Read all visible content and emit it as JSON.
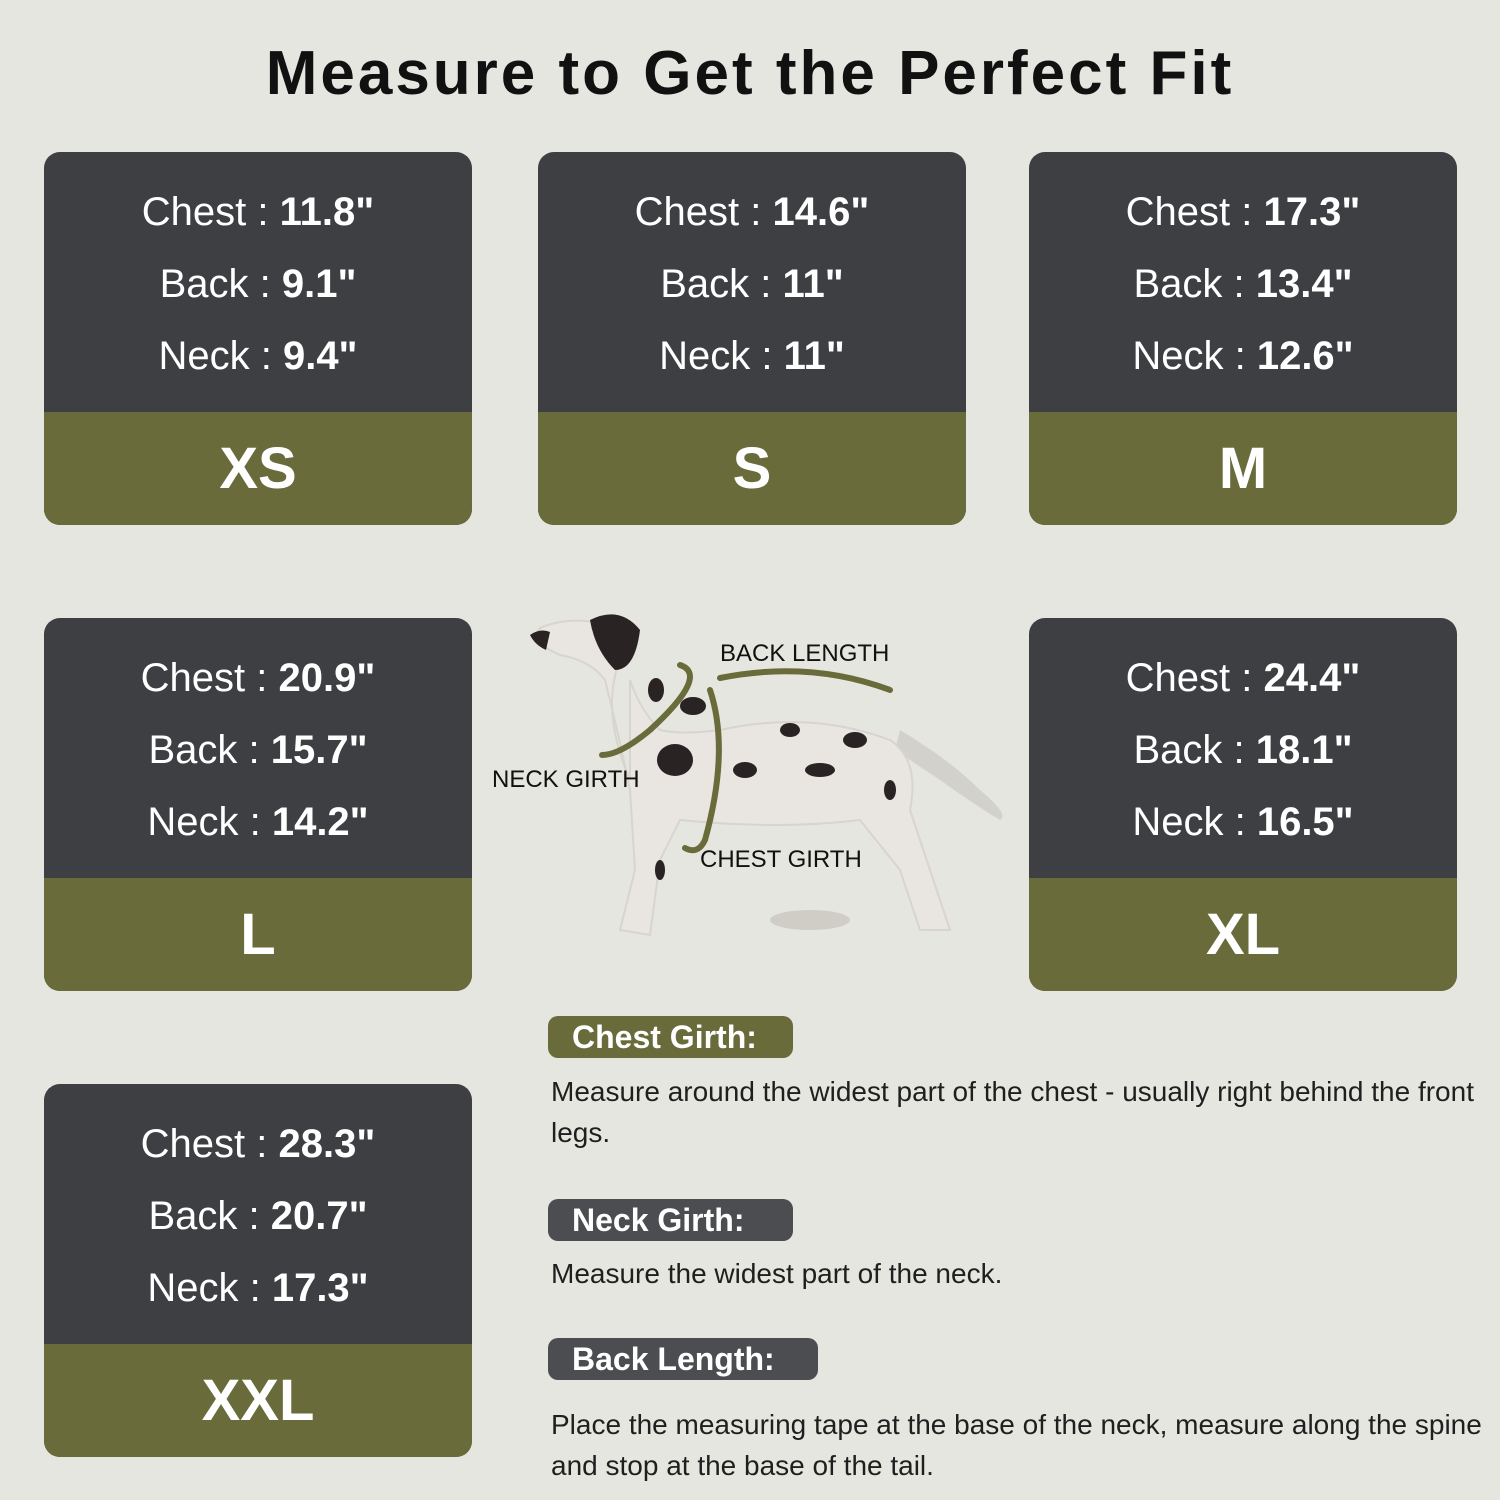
{
  "title": "Measure to Get the Perfect Fit",
  "sizes": [
    {
      "size": "XS",
      "chest_label": "Chest : ",
      "chest": "11.8\"",
      "back_label": "Back : ",
      "back": "9.1\"",
      "neck_label": "Neck : ",
      "neck": "9.4\""
    },
    {
      "size": "S",
      "chest_label": "Chest : ",
      "chest": "14.6\"",
      "back_label": "Back : ",
      "back": "11\"",
      "neck_label": "Neck : ",
      "neck": "11\""
    },
    {
      "size": "M",
      "chest_label": "Chest : ",
      "chest": "17.3\"",
      "back_label": "Back : ",
      "back": "13.4\"",
      "neck_label": "Neck : ",
      "neck": "12.6\""
    },
    {
      "size": "L",
      "chest_label": "Chest : ",
      "chest": "20.9\"",
      "back_label": "Back : ",
      "back": "15.7\"",
      "neck_label": "Neck : ",
      "neck": "14.2\""
    },
    {
      "size": "XL",
      "chest_label": "Chest : ",
      "chest": "24.4\"",
      "back_label": "Back : ",
      "back": "18.1\"",
      "neck_label": "Neck : ",
      "neck": "16.5\""
    },
    {
      "size": "XXL",
      "chest_label": "Chest : ",
      "chest": "28.3\"",
      "back_label": "Back : ",
      "back": "20.7\"",
      "neck_label": "Neck : ",
      "neck": "17.3\""
    }
  ],
  "diagram": {
    "back_length": "BACK LENGTH",
    "neck_girth": "NECK GIRTH",
    "chest_girth": "CHEST GIRTH"
  },
  "guide": [
    {
      "heading": "Chest Girth:",
      "text": "Measure around the widest part of the chest - usually right behind the front legs."
    },
    {
      "heading": "Neck Girth:",
      "text": "Measure the widest part of the neck."
    },
    {
      "heading": "Back Length:",
      "text": "Place the measuring tape at the base of the neck, measure along the spine and stop at the base of the tail."
    }
  ],
  "colors": {
    "background": "#e6e6e0",
    "card": "#3d3f42",
    "accent": "#6a6b3a",
    "badge_gray": "#4b4d50"
  }
}
